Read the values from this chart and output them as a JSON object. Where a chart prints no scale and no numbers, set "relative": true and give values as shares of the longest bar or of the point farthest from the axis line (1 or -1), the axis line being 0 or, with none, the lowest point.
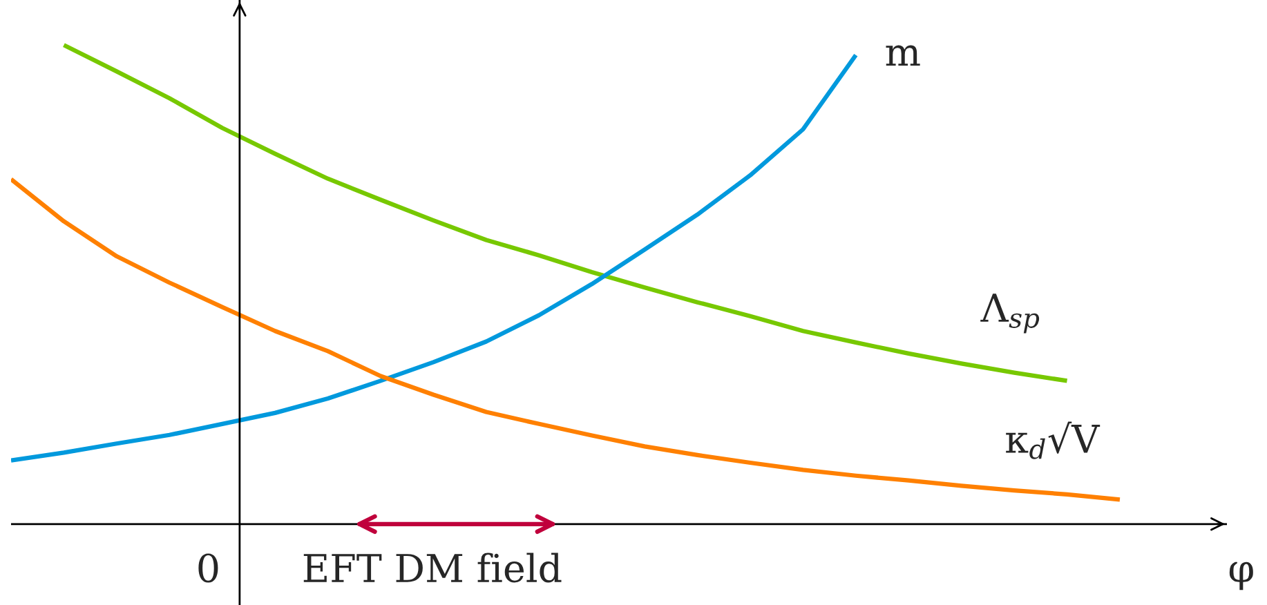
{
  "chart_data": {
    "type": "line",
    "relative": true,
    "xlabel": "φ",
    "categories": [
      null,
      null,
      null,
      null,
      null,
      null,
      null,
      null,
      null,
      null,
      null,
      null,
      null,
      null,
      null,
      null,
      null,
      null,
      null,
      null,
      null,
      null
    ],
    "series": [
      {
        "name": "Λ$_{sp}$",
        "color": "#77c800",
        "values": [
          null,
          1.0,
          0.945,
          0.889,
          0.827,
          0.773,
          0.721,
          0.677,
          0.634,
          0.593,
          0.561,
          0.526,
          0.494,
          0.463,
          0.434,
          0.403,
          0.379,
          0.356,
          0.335,
          0.316,
          0.299,
          null
        ]
      },
      {
        "name": "m",
        "color": "#0099dd",
        "values": [
          0.133,
          0.149,
          0.168,
          0.186,
          0.209,
          0.232,
          0.262,
          0.299,
          0.338,
          0.381,
          0.436,
          0.501,
          0.573,
          0.646,
          0.728,
          0.824,
          0.979,
          null,
          null,
          null,
          null,
          null
        ]
      },
      {
        "name": "κ$_{d}$√V",
        "color": "#ff8000",
        "values": [
          0.72,
          0.632,
          0.559,
          0.504,
          0.453,
          0.403,
          0.361,
          0.309,
          0.27,
          0.234,
          0.209,
          0.185,
          0.162,
          0.144,
          0.128,
          0.113,
          0.101,
          0.091,
          0.08,
          0.07,
          0.062,
          0.051
        ]
      }
    ],
    "annotations": [
      "0",
      "EFT DM field"
    ],
    "legend": false
  }
}
